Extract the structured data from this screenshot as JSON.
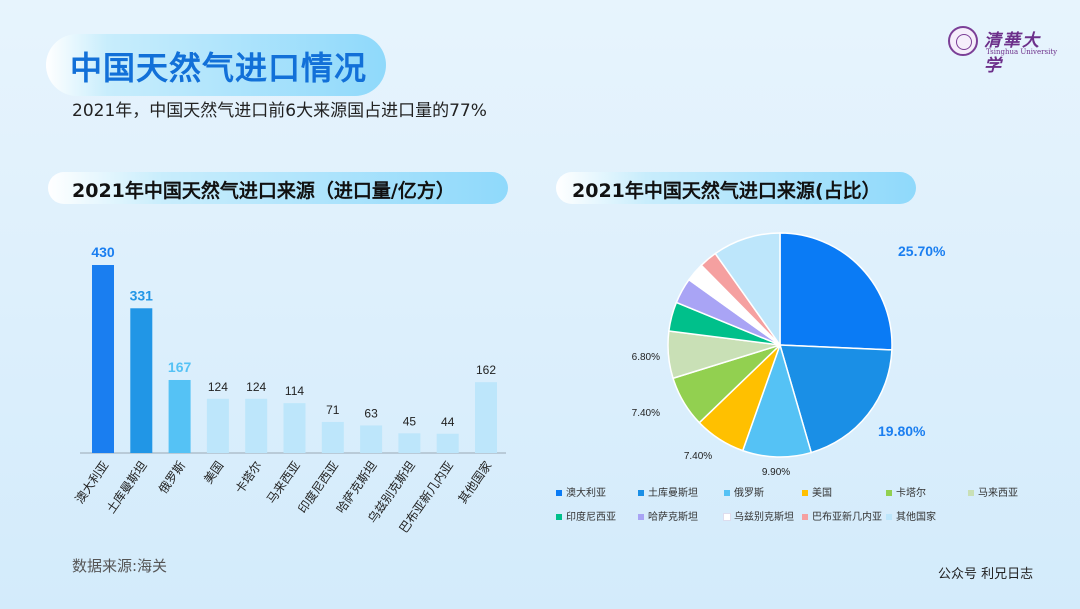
{
  "page": {
    "title": "中国天然气进口情况",
    "subtitle": "2021年，中国天然气进口前6大来源国占进口量的77%",
    "logo_cn": "清華大学",
    "logo_en": "Tsinghua University",
    "source": "数据来源:海关",
    "credit": "公众号 利兄日志"
  },
  "colors": {
    "title": "#1270d8",
    "bar_dark": "#1a7ef0",
    "bar_mid": "#2196e6",
    "bar_light": "#55c2f5",
    "bar_pale": "#bde6fb"
  },
  "chart_data": [
    {
      "type": "bar",
      "title": "2021年中国天然气进口来源（进口量/亿方）",
      "categories": [
        "澳大利亚",
        "土库曼斯坦",
        "俄罗斯",
        "美国",
        "卡塔尔",
        "马来西亚",
        "印度尼西亚",
        "哈萨克斯坦",
        "乌兹别克斯坦",
        "巴布亚新几内亚",
        "其他国家"
      ],
      "values": [
        430,
        331,
        167,
        124,
        124,
        114,
        71,
        63,
        45,
        44,
        162
      ],
      "value_labels": [
        "430",
        "331",
        "167",
        "124",
        "124",
        "114",
        "71",
        "63",
        "45",
        "44",
        "162"
      ],
      "bar_colors": [
        "#1a7ef0",
        "#2196e6",
        "#55c2f5",
        "#bde6fb",
        "#bde6fb",
        "#bde6fb",
        "#bde6fb",
        "#bde6fb",
        "#bde6fb",
        "#bde6fb",
        "#bde6fb"
      ],
      "label_colors": [
        "#1a7ef0",
        "#2196e6",
        "#55c2f5",
        "#222222",
        "#222222",
        "#222222",
        "#222222",
        "#222222",
        "#222222",
        "#222222",
        "#222222"
      ],
      "ylim": [
        0,
        450
      ],
      "grid": false
    },
    {
      "type": "pie",
      "title": "2021年中国天然气进口来源(占比）",
      "categories": [
        "澳大利亚",
        "土库曼斯坦",
        "俄罗斯",
        "美国",
        "卡塔尔",
        "马来西亚",
        "印度尼西亚",
        "哈萨克斯坦",
        "乌兹别克斯坦",
        "巴布亚新几内亚",
        "其他国家"
      ],
      "values": [
        25.7,
        19.8,
        9.9,
        7.4,
        7.4,
        6.8,
        4.2,
        3.7,
        2.7,
        2.6,
        9.8
      ],
      "colors": [
        "#0a7bf5",
        "#1a8fe6",
        "#55c2f5",
        "#ffc000",
        "#92d050",
        "#c9e0b6",
        "#00c08b",
        "#a9a4f5",
        "#ffffff",
        "#f5a0a0",
        "#bde6fb"
      ],
      "data_labels": [
        "25.70%",
        "19.80%",
        "9.90%",
        "7.40%",
        "7.40%",
        "6.80%",
        "",
        "",
        "",
        "",
        ""
      ],
      "legend_position": "bottom"
    }
  ]
}
